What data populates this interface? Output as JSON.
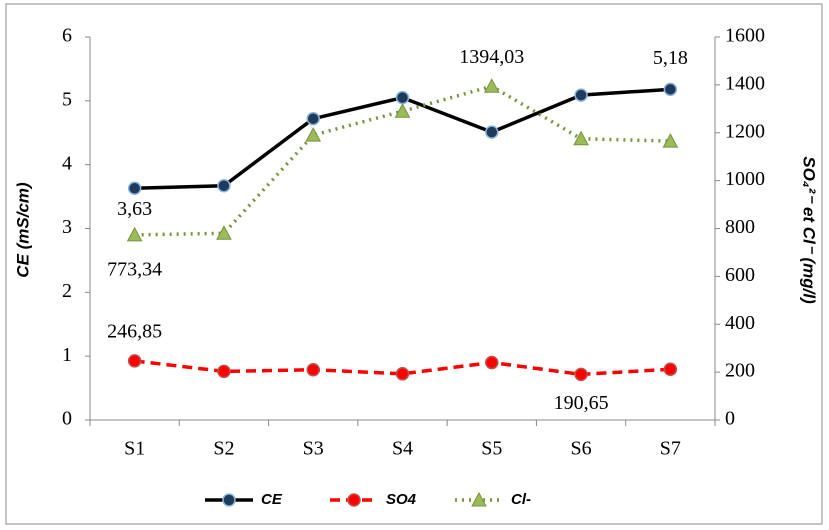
{
  "chart_data": {
    "type": "line",
    "categories": [
      "S1",
      "S2",
      "S3",
      "S4",
      "S5",
      "S6",
      "S7"
    ],
    "ylabel": "CE (mS/cm)",
    "y2label": "SO₄²⁻ et Cl⁻ (mg/l)",
    "ylim": [
      0,
      6
    ],
    "yticks": [
      0,
      1,
      2,
      3,
      4,
      5,
      6
    ],
    "y2lim": [
      0,
      1600
    ],
    "y2ticks": [
      0,
      200,
      400,
      600,
      800,
      1000,
      1200,
      1400,
      1600
    ],
    "legend": "bottom",
    "series": [
      {
        "name": "CE",
        "color": "#000000",
        "values": [
          3.63,
          3.67,
          4.72,
          5.05,
          4.51,
          5.09,
          5.18
        ],
        "value_labels": [
          "3,63",
          null,
          null,
          null,
          null,
          null,
          "5,18"
        ]
      },
      {
        "name": "SO4",
        "color": "#ff0000",
        "axis": "y2",
        "values": [
          246.85,
          203,
          210,
          193,
          240,
          190.65,
          212
        ],
        "value_labels": [
          "246,85",
          null,
          null,
          null,
          null,
          "190,65",
          null
        ]
      },
      {
        "name": "Cl-",
        "color": "#77933c",
        "axis": "y2",
        "values": [
          773.34,
          780,
          1190,
          1290,
          1394.03,
          1175,
          1165
        ],
        "value_labels": [
          "773,34",
          null,
          null,
          null,
          "1394,03",
          null,
          null
        ]
      }
    ]
  }
}
